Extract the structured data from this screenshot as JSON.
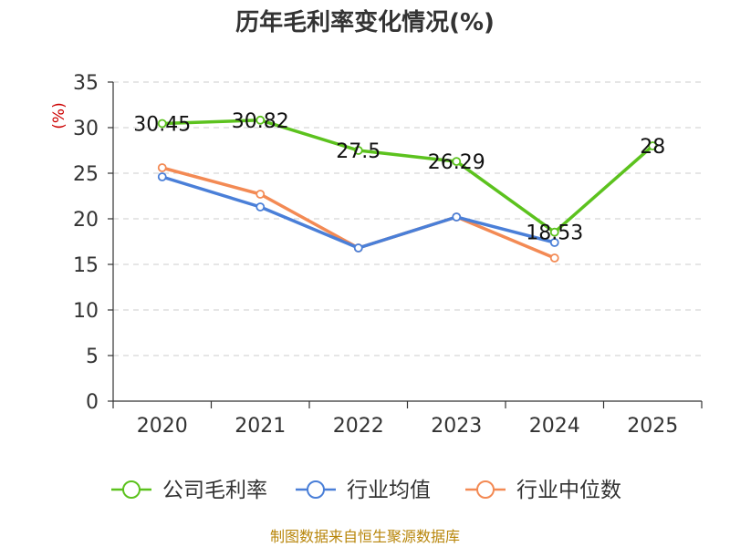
{
  "chart_data": {
    "type": "line",
    "title": "历年毛利率变化情况(%)",
    "ylabel": "(%)",
    "ylim": [
      0,
      35
    ],
    "yticks": [
      0,
      5,
      10,
      15,
      20,
      25,
      30,
      35
    ],
    "categories": [
      "2020",
      "2021",
      "2022",
      "2023",
      "2024",
      "2025"
    ],
    "grid": true,
    "legend_position": "bottom",
    "series": [
      {
        "name": "公司毛利率",
        "color": "#5cc21e",
        "values": [
          30.45,
          30.82,
          27.5,
          26.29,
          18.53,
          28
        ],
        "labels": [
          "30.45",
          "30.82",
          "27.5",
          "26.29",
          "18.53",
          "28"
        ]
      },
      {
        "name": "行业均值",
        "color": "#4a7fd8",
        "values": [
          24.6,
          21.3,
          16.8,
          20.2,
          17.4,
          null
        ]
      },
      {
        "name": "行业中位数",
        "color": "#f38a54",
        "values": [
          25.6,
          22.7,
          16.8,
          20.2,
          15.7,
          null
        ]
      }
    ]
  },
  "source": "制图数据来自恒生聚源数据库"
}
